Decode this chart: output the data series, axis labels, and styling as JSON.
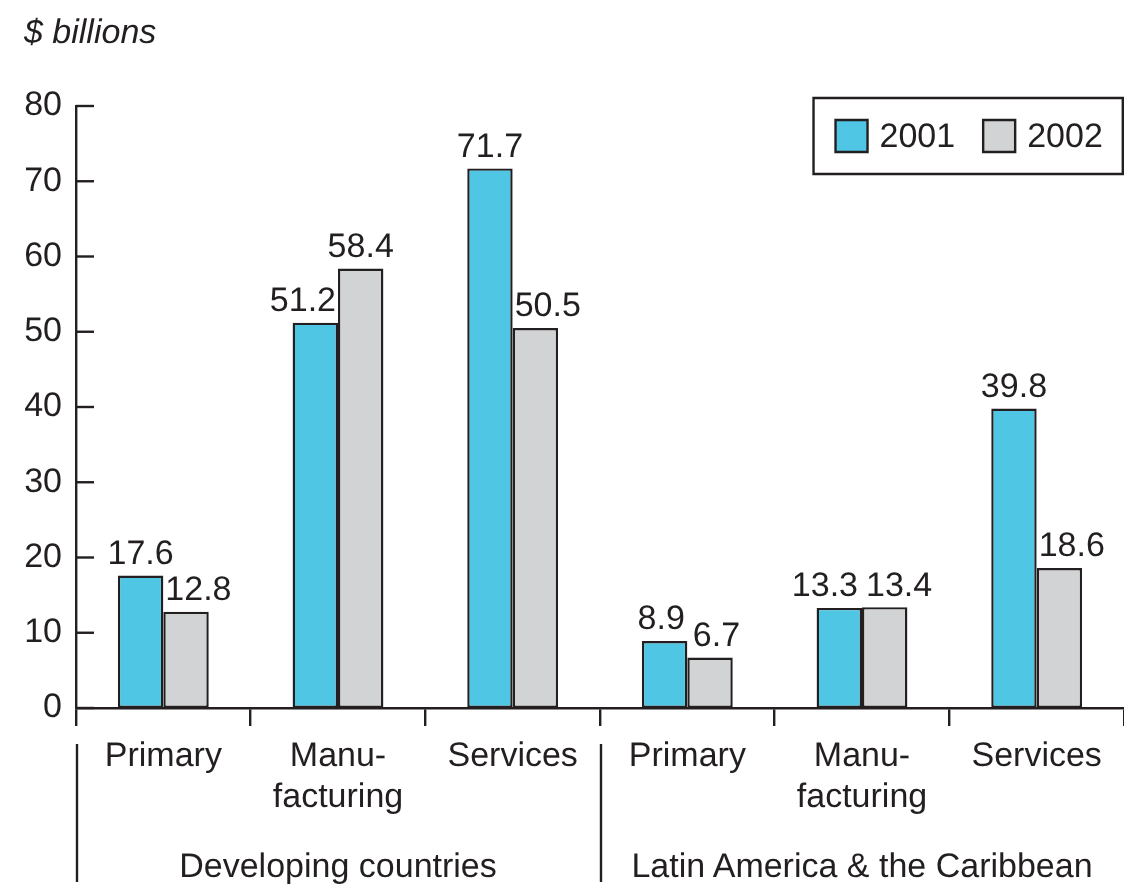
{
  "chart_data": {
    "type": "bar",
    "ylabel": "$ billions",
    "categories": [
      "Primary",
      "Manu-\nfacturing",
      "Services",
      "Primary",
      "Manu-\nfacturing",
      "Services"
    ],
    "series": [
      {
        "name": "2001",
        "color": "#4fc6e3",
        "values": [
          17.6,
          51.2,
          71.7,
          8.9,
          13.3,
          39.8
        ]
      },
      {
        "name": "2002",
        "color": "#d1d3d4",
        "values": [
          12.8,
          58.4,
          50.5,
          6.7,
          13.4,
          18.6
        ]
      }
    ],
    "ylim": [
      0,
      80
    ],
    "yticks": [
      0,
      10,
      20,
      30,
      40,
      50,
      60,
      70,
      80
    ],
    "annotations": [
      "Developing countries",
      "Latin America & the Caribbean"
    ],
    "grid": false,
    "legend": "top right",
    "data_labels": true
  }
}
